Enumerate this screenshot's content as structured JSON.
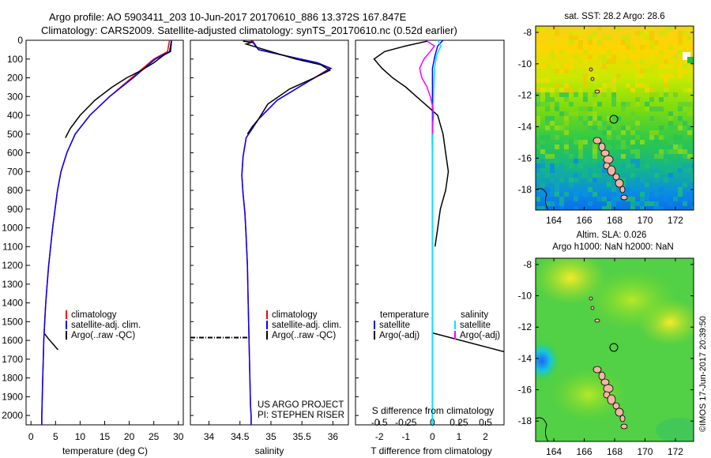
{
  "titles": {
    "line1": "Argo profile: AO 5903411_203 10-Jun-2017 20170610_886 13.372S 167.847E",
    "line2": "Climatology: CARS2009. Satellite-adjusted climatology: synTS_20170610.nc (0.52d earlier)"
  },
  "colors": {
    "climatology": "#ff0000",
    "satellite": "#0000ff",
    "argo": "#000000",
    "satellite_s": "#00e5ff",
    "argo_s": "#ff00ff"
  },
  "credits": {
    "project": "US ARGO PROJECT",
    "pi": "PI: STEPHEN RISER",
    "stamp": "©IMOS 17-Jun-2017 20:39:50"
  },
  "chart_data": [
    {
      "type": "line",
      "title": "",
      "xlabel": "temperature (deg C)",
      "ylabel": "",
      "xlim": [
        -1,
        31
      ],
      "ylim": [
        2050,
        0
      ],
      "xticks": [
        0,
        5,
        10,
        15,
        20,
        25,
        30
      ],
      "yticks": [
        0,
        100,
        200,
        300,
        400,
        500,
        600,
        700,
        800,
        900,
        1000,
        1100,
        1200,
        1300,
        1400,
        1500,
        1600,
        1700,
        1800,
        1900,
        2000
      ],
      "legend": [
        "climatology",
        "satellite-adj. clim.",
        "Argo(..raw -QC)"
      ],
      "series": [
        {
          "name": "climatology",
          "x": [
            28.2,
            27.8,
            25.0,
            20.5,
            16.0,
            12.0,
            9.0,
            7.3,
            6.1,
            5.4,
            4.9,
            4.4,
            4.0,
            3.6,
            3.3,
            3.0,
            2.8,
            2.6,
            2.5,
            2.4,
            2.3,
            2.2,
            2.2
          ],
          "y": [
            0,
            60,
            100,
            200,
            300,
            400,
            500,
            600,
            700,
            800,
            900,
            1000,
            1100,
            1200,
            1300,
            1400,
            1500,
            1600,
            1700,
            1800,
            1900,
            2000,
            2050
          ]
        },
        {
          "name": "satellite-adj. clim.",
          "x": [
            28.6,
            28.2,
            25.3,
            20.8,
            16.0,
            12.0,
            9.0,
            7.3,
            6.1,
            5.4,
            4.9,
            4.4,
            4.0,
            3.6,
            3.3,
            3.0,
            2.8,
            2.6,
            2.5,
            2.4,
            2.3,
            2.2,
            2.2
          ],
          "y": [
            0,
            60,
            100,
            200,
            300,
            400,
            500,
            600,
            700,
            800,
            900,
            1000,
            1100,
            1200,
            1300,
            1400,
            1500,
            1600,
            1700,
            1800,
            1900,
            2000,
            2050
          ]
        },
        {
          "name": "Argo(..raw -QC)",
          "x": [
            28.6,
            28.4,
            27.0,
            25.0,
            22.5,
            19.5,
            16.5,
            13.0,
            10.0,
            8.0,
            7.0
          ],
          "y": [
            5,
            60,
            80,
            120,
            160,
            200,
            250,
            320,
            400,
            470,
            520
          ]
        },
        {
          "name": "Argo(..raw -QC)",
          "x": [
            2.8,
            3.5,
            4.5,
            5.5
          ],
          "y": [
            1565,
            1590,
            1620,
            1650
          ]
        }
      ]
    },
    {
      "type": "line",
      "title": "",
      "xlabel": "salinity",
      "ylabel": "",
      "xlim": [
        33.7,
        36.25
      ],
      "ylim": [
        2050,
        0
      ],
      "xticks": [
        34,
        34.5,
        35,
        35.5,
        36
      ],
      "legend": [
        "climatology",
        "satellite-adj. clim.",
        "Argo(..raw -QC)"
      ],
      "series": [
        {
          "name": "climatology",
          "x": [
            34.7,
            34.8,
            35.2,
            35.75,
            35.95,
            35.6,
            35.1,
            34.8,
            34.6,
            34.55,
            34.53,
            34.55,
            34.58,
            34.6,
            34.62,
            34.63,
            34.64,
            34.65,
            34.66,
            34.67,
            34.68,
            34.68
          ],
          "y": [
            0,
            50,
            80,
            120,
            150,
            220,
            320,
            420,
            520,
            620,
            720,
            820,
            920,
            1050,
            1200,
            1350,
            1500,
            1650,
            1800,
            1950,
            2000,
            2050
          ]
        },
        {
          "name": "satellite-adj. clim.",
          "x": [
            34.68,
            34.8,
            35.2,
            35.75,
            35.97,
            35.6,
            35.1,
            34.8,
            34.6,
            34.55,
            34.53,
            34.55,
            34.58,
            34.6,
            34.62,
            34.63,
            34.64,
            34.65,
            34.66,
            34.67,
            34.68,
            34.68
          ],
          "y": [
            0,
            50,
            80,
            120,
            150,
            220,
            320,
            420,
            520,
            620,
            720,
            820,
            920,
            1050,
            1200,
            1350,
            1500,
            1650,
            1800,
            1950,
            2000,
            2050
          ]
        },
        {
          "name": "Argo(..raw -QC)",
          "x": [
            34.55,
            34.7,
            34.6,
            35.0,
            35.4,
            35.8,
            35.95,
            35.7,
            35.3,
            34.95,
            34.8,
            34.7,
            34.62
          ],
          "y": [
            5,
            10,
            20,
            60,
            100,
            130,
            160,
            200,
            260,
            340,
            420,
            460,
            500
          ]
        },
        {
          "name": "Argo(..raw -QC)",
          "x": [
            33.7,
            34.68
          ],
          "y": [
            1585,
            1585
          ]
        }
      ]
    },
    {
      "type": "line",
      "title": "",
      "xlabel": "T difference from climatology",
      "x2label": "S difference from climatology",
      "ylabel": "",
      "xlim": [
        -2.9,
        2.7
      ],
      "x2lim": [
        -0.725,
        0.675
      ],
      "ylim": [
        2050,
        0
      ],
      "xticks": [
        -2,
        -1,
        0,
        1,
        2
      ],
      "x2ticks": [
        -0.5,
        -0.25,
        0,
        0.25,
        0.5
      ],
      "legend_left_title": "temperature",
      "legend_right_title": "salinity",
      "legend": [
        "satellite",
        "Argo(-adj)",
        "satellite",
        "Argo(-adj)"
      ],
      "series": [
        {
          "name": "satellite",
          "axis": "T",
          "x": [
            0.4,
            0.2,
            0.1,
            0.0,
            0.0,
            0.0,
            0.0,
            0.0,
            0.0
          ],
          "y": [
            0,
            30,
            80,
            150,
            300,
            600,
            1000,
            1500,
            2050
          ]
        },
        {
          "name": "Argo(-adj)",
          "axis": "T",
          "x": [
            -0.2,
            -1.0,
            -1.8,
            -2.2,
            -1.9,
            -1.5,
            -1.0,
            -0.6,
            -0.2,
            0.2,
            0.3,
            0.4,
            0.5,
            0.6,
            0.5,
            0.3,
            0.2,
            0.1
          ],
          "y": [
            5,
            30,
            60,
            100,
            150,
            200,
            250,
            300,
            350,
            400,
            450,
            500,
            600,
            700,
            800,
            900,
            1000,
            1100
          ]
        },
        {
          "name": "Argo(-adj)",
          "axis": "T",
          "x": [
            0.0,
            2.7
          ],
          "y": [
            1560,
            1660
          ]
        },
        {
          "name": "satellite",
          "axis": "S",
          "x": [
            0.05,
            0.08,
            0.04,
            0.02,
            0.01,
            0.0,
            0.0,
            0.0,
            0.0
          ],
          "y": [
            0,
            30,
            80,
            150,
            300,
            600,
            1000,
            1500,
            2050
          ]
        },
        {
          "name": "Argo(-adj)",
          "axis": "S",
          "x": [
            -0.05,
            0.02,
            -0.02,
            -0.08,
            -0.12,
            -0.1,
            -0.05,
            -0.02,
            0.0,
            0.01,
            0.0,
            0.0
          ],
          "y": [
            5,
            30,
            60,
            100,
            150,
            200,
            250,
            300,
            350,
            400,
            450,
            500
          ]
        }
      ]
    },
    {
      "type": "heatmap",
      "title": "sat. SST: 28.2 Argo: 28.6",
      "xticks": [
        164,
        166,
        168,
        170,
        172
      ],
      "yticks": [
        -8,
        -10,
        -12,
        -14,
        -16,
        -18
      ],
      "xlim": [
        162.8,
        173.2
      ],
      "ylim": [
        -19.3,
        -7.6
      ],
      "profile_marker": {
        "lon": 167.847,
        "lat": -13.372
      }
    },
    {
      "type": "heatmap",
      "title": "Altim. SLA: 0.026",
      "subtitle": "Argo h1000: NaN h2000: NaN",
      "xticks": [
        164,
        166,
        168,
        170,
        172
      ],
      "yticks": [
        -8,
        -10,
        -12,
        -14,
        -16,
        -18
      ],
      "xlim": [
        162.8,
        173.2
      ],
      "ylim": [
        -19.3,
        -7.6
      ],
      "profile_marker": {
        "lon": 167.847,
        "lat": -13.372
      }
    }
  ]
}
